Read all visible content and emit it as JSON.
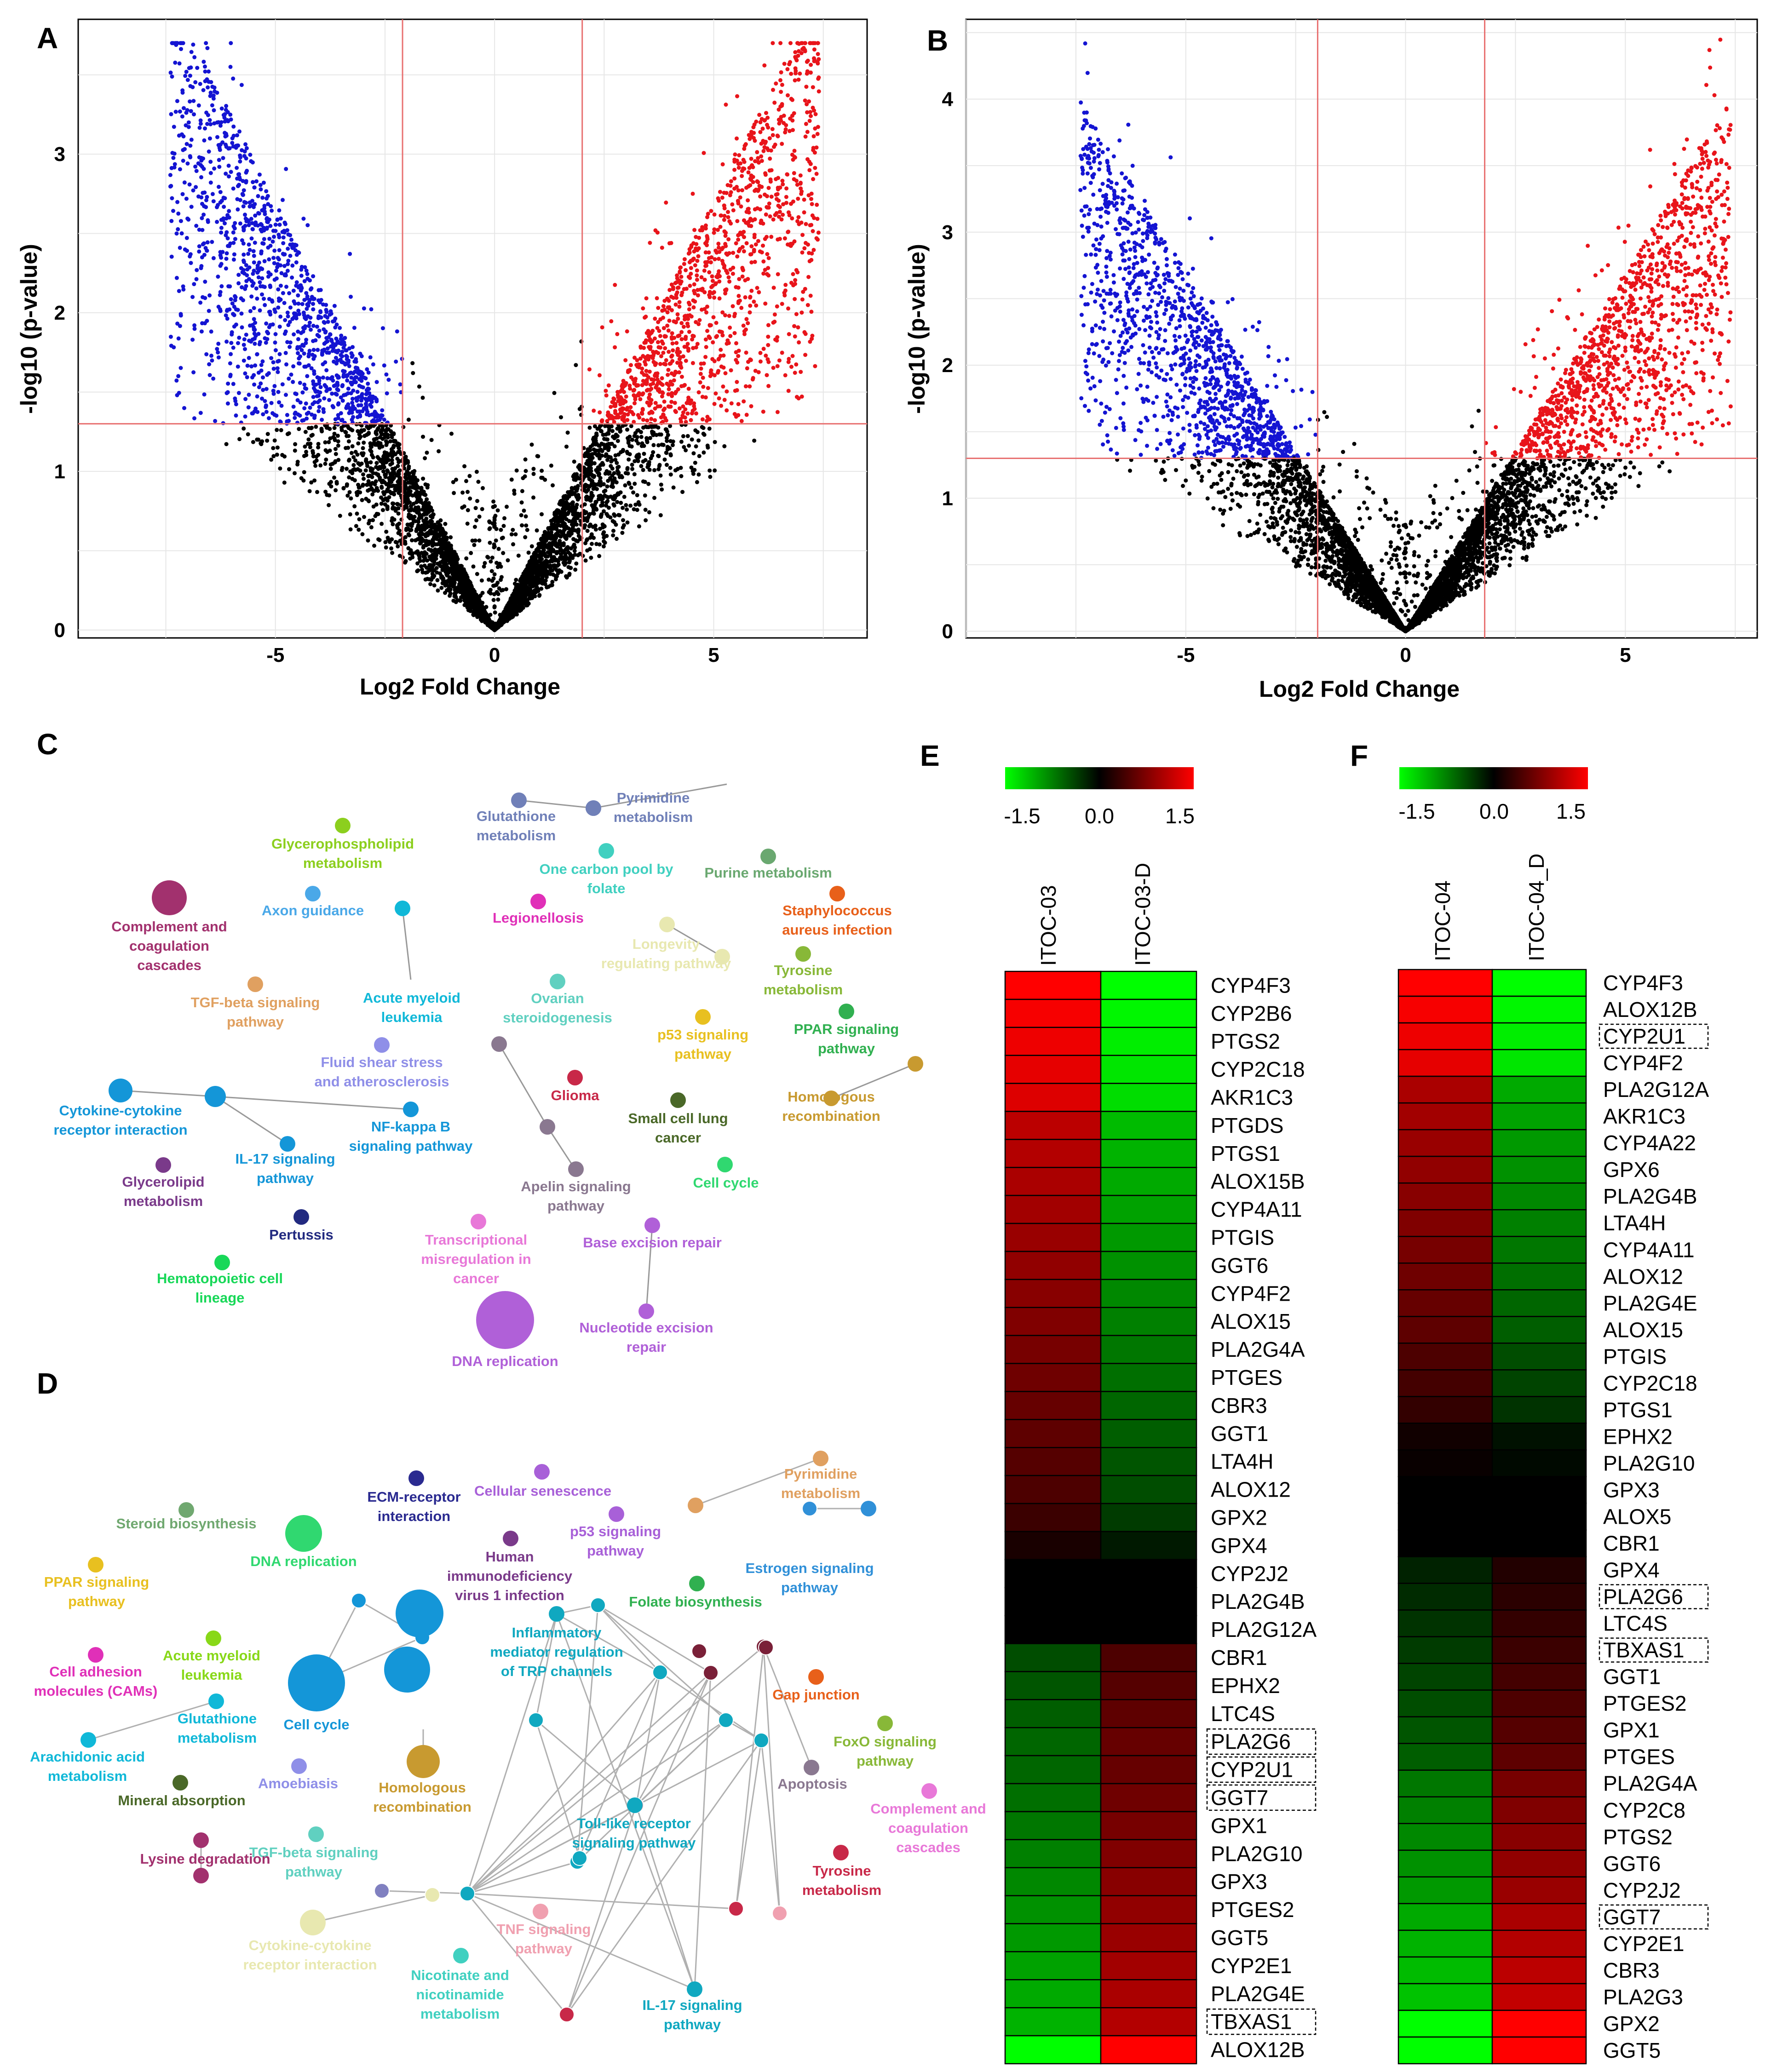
{
  "panels": {
    "A": "A",
    "B": "B",
    "C": "C",
    "D": "D",
    "E": "E",
    "F": "F"
  },
  "volcano": {
    "xlabel": "Log2 Fold Change",
    "ylabel": "-log10 (p-value)",
    "colors": {
      "up": "#e8141a",
      "down": "#1414d2",
      "ns": "#000000",
      "cut": "#e87070"
    },
    "A": {
      "xlim": [
        -9.5,
        8.5
      ],
      "ylim": [
        -0.05,
        3.85
      ],
      "xticks": [
        "-5",
        "0",
        "5"
      ],
      "xtick_values": [
        -5,
        0,
        5
      ],
      "yticks": [
        "0",
        "1",
        "2",
        "3"
      ],
      "ytick_values": [
        0,
        1,
        2,
        3
      ],
      "fc_cut": [
        -2.1,
        2.0
      ],
      "p_cut": 1.3,
      "ymax": 3.7
    },
    "B": {
      "xlim": [
        -10,
        8
      ],
      "ylim": [
        -0.05,
        4.6
      ],
      "xticks": [
        "-5",
        "0",
        "5"
      ],
      "xtick_values": [
        -5,
        0,
        5
      ],
      "yticks": [
        "0",
        "1",
        "2",
        "3",
        "4"
      ],
      "ytick_values": [
        0,
        1,
        2,
        3,
        4
      ],
      "fc_cut": [
        -2.0,
        1.8
      ],
      "p_cut": 1.3,
      "ymax": 4.5
    }
  },
  "network_c": {
    "nodes": [
      {
        "label": "Glycerophospholipid\nmetabolism",
        "color": "#8ccf1e"
      },
      {
        "label": "Complement and\ncoagulation\ncascades",
        "color": "#a2316e"
      },
      {
        "label": "Axon guidance",
        "color": "#4aa8e8"
      },
      {
        "label": "TGF-beta signaling\npathway",
        "color": "#e0a060"
      },
      {
        "label": "Acute myeloid\nleukemia",
        "color": "#10b8d8"
      },
      {
        "label": "Fluid shear stress\nand atherosclerosis",
        "color": "#8f8fe8"
      },
      {
        "label": "Cytokine-cytokine\nreceptor interaction",
        "color": "#1496d8"
      },
      {
        "label": "IL-17 signaling\npathway",
        "color": "#1496d8"
      },
      {
        "label": "NF-kappa B\nsignaling pathway",
        "color": "#1496d8"
      },
      {
        "label": "Glycerolipid\nmetabolism",
        "color": "#7a3a8a"
      },
      {
        "label": "Pertussis",
        "color": "#222a80"
      },
      {
        "label": "Hematopoietic cell\nlineage",
        "color": "#18d858"
      },
      {
        "label": "Glutathione\nmetabolism",
        "color": "#7080b8"
      },
      {
        "label": "Pyrimidine\nmetabolism",
        "color": "#7080b8"
      },
      {
        "label": "One carbon pool by\nfolate",
        "color": "#40d0c0"
      },
      {
        "label": "Purine metabolism",
        "color": "#6aa870"
      },
      {
        "label": "Legionellosis",
        "color": "#e030b8"
      },
      {
        "label": "Staphylococcus\naureus infection",
        "color": "#e8601a"
      },
      {
        "label": "Longevity\nregulating pathway",
        "color": "#e8e8b0"
      },
      {
        "label": "Tyrosine\nmetabolism",
        "color": "#88b838"
      },
      {
        "label": "Ovarian\nsteroidogenesis",
        "color": "#60d0c0"
      },
      {
        "label": "p53 signaling\npathway",
        "color": "#e8c020"
      },
      {
        "label": "PPAR signaling\npathway",
        "color": "#30b050"
      },
      {
        "label": "Homologous\nrecombination",
        "color": "#c89a30"
      },
      {
        "label": "Glioma",
        "color": "#c82848"
      },
      {
        "label": "Small cell lung\ncancer",
        "color": "#4a6828"
      },
      {
        "label": "Cell cycle",
        "color": "#30d870"
      },
      {
        "label": "Apelin signaling\npathway",
        "color": "#8a7890"
      },
      {
        "label": "Transcriptional\nmisregulation in\ncancer",
        "color": "#e878d8"
      },
      {
        "label": "Base excision repair",
        "color": "#b060d8"
      },
      {
        "label": "Nucleotide excision\nrepair",
        "color": "#b060d8"
      },
      {
        "label": "DNA replication",
        "color": "#b060d8"
      }
    ]
  },
  "network_d": {
    "nodes": [
      {
        "label": "Steroid biosynthesis",
        "color": "#70a870"
      },
      {
        "label": "DNA replication",
        "color": "#30d870"
      },
      {
        "label": "ECM-receptor\ninteraction",
        "color": "#2a2a90"
      },
      {
        "label": "Cellular senescence",
        "color": "#a860d8"
      },
      {
        "label": "Pyrimidine\nmetabolism",
        "color": "#e0a060"
      },
      {
        "label": "p53 signaling\npathway",
        "color": "#a860d8"
      },
      {
        "label": "Human\nimmunodeficiency\nvirus 1 infection",
        "color": "#7a3a8a"
      },
      {
        "label": "Estrogen signaling\npathway",
        "color": "#3090d8"
      },
      {
        "label": "PPAR signaling\npathway",
        "color": "#e8c020"
      },
      {
        "label": "Folate biosynthesis",
        "color": "#30b050"
      },
      {
        "label": "Acute myeloid\nleukemia",
        "color": "#88d818"
      },
      {
        "label": "Inflammatory\nmediator regulation\nof TRP channels",
        "color": "#10a8c0"
      },
      {
        "label": "Cell adhesion\nmolecules (CAMs)",
        "color": "#e030b8"
      },
      {
        "label": "Glutathione\nmetabolism",
        "color": "#10b8d8"
      },
      {
        "label": "Cell cycle",
        "color": "#1496d8"
      },
      {
        "label": "Gap junction",
        "color": "#e8601a"
      },
      {
        "label": "Arachidonic acid\nmetabolism",
        "color": "#10b8d8"
      },
      {
        "label": "Mineral absorption",
        "color": "#4a6828"
      },
      {
        "label": "Amoebiasis",
        "color": "#8f8fe8"
      },
      {
        "label": "Homologous\nrecombination",
        "color": "#c89a30"
      },
      {
        "label": "FoxO signaling\npathway",
        "color": "#88b838"
      },
      {
        "label": "Apoptosis",
        "color": "#8a7890"
      },
      {
        "label": "Complement and\ncoagulation\ncascades",
        "color": "#e878d8"
      },
      {
        "label": "Toll-like receptor\nsignaling pathway",
        "color": "#10a8c0"
      },
      {
        "label": "TGF-beta signaling\npathway",
        "color": "#60d0c0"
      },
      {
        "label": "Lysine degradation",
        "color": "#a2316e"
      },
      {
        "label": "Tyrosine\nmetabolism",
        "color": "#c82848"
      },
      {
        "label": "TNF signaling\npathway",
        "color": "#f0a0b0"
      },
      {
        "label": "Cytokine-cytokine\nreceptor interaction",
        "color": "#e8e8b0"
      },
      {
        "label": "Nicotinate and\nnicotinamide\nmetabolism",
        "color": "#40d0c0"
      },
      {
        "label": "IL-17 signaling\npathway",
        "color": "#10a8c0"
      }
    ]
  },
  "heatmap_e": {
    "colorbar_ticks": [
      "-1.5",
      "0.0",
      "1.5"
    ],
    "columns": [
      "ITOC-03",
      "ITOC-03-D"
    ],
    "genes": [
      "CYP4F3",
      "CYP2B6",
      "PTGS2",
      "CYP2C18",
      "AKR1C3",
      "PTGDS",
      "PTGS1",
      "ALOX15B",
      "CYP4A11",
      "PTGIS",
      "GGT6",
      "CYP4F2",
      "ALOX15",
      "PLA2G4A",
      "PTGES",
      "CBR3",
      "GGT1",
      "LTA4H",
      "ALOX12",
      "GPX2",
      "GPX4",
      "CYP2J2",
      "PLA2G4B",
      "PLA2G12A",
      "CBR1",
      "EPHX2",
      "LTC4S",
      "PLA2G6",
      "CYP2U1",
      "GGT7",
      "GPX1",
      "PLA2G10",
      "GPX3",
      "PTGES2",
      "GGT5",
      "CYP2E1",
      "PLA2G4E",
      "TBXAS1",
      "ALOX12B"
    ],
    "values": [
      -1.5,
      -1.45,
      -1.4,
      -1.35,
      -1.3,
      -1.1,
      -1.05,
      -1.0,
      -0.95,
      -0.9,
      -0.85,
      -0.8,
      -0.75,
      -0.7,
      -0.65,
      -0.6,
      -0.55,
      -0.5,
      -0.45,
      -0.35,
      -0.15,
      0.0,
      0.0,
      0.0,
      0.45,
      0.5,
      0.55,
      0.6,
      0.6,
      0.65,
      0.7,
      0.75,
      0.8,
      0.85,
      0.9,
      0.95,
      1.0,
      1.05,
      1.5
    ],
    "boxed": [
      "PLA2G6",
      "CYP2U1",
      "GGT7",
      "TBXAS1"
    ]
  },
  "heatmap_f": {
    "colorbar_ticks": [
      "-1.5",
      "0.0",
      "1.5"
    ],
    "columns": [
      "ITOC-04",
      "ITOC-04_D"
    ],
    "genes": [
      "CYP4F3",
      "ALOX12B",
      "CYP2U1",
      "CYP4F2",
      "PLA2G12A",
      "AKR1C3",
      "CYP4A22",
      "GPX6",
      "PLA2G4B",
      "LTA4H",
      "CYP4A11",
      "ALOX12",
      "PLA2G4E",
      "ALOX15",
      "PTGIS",
      "CYP2C18",
      "PTGS1",
      "EPHX2",
      "PLA2G10",
      "GPX3",
      "ALOX5",
      "CBR1",
      "GPX4",
      "PLA2G6",
      "LTC4S",
      "TBXAS1",
      "GGT1",
      "PTGES2",
      "GPX1",
      "PTGES",
      "PLA2G4A",
      "CYP2C8",
      "PTGS2",
      "GGT6",
      "CYP2J2",
      "GGT7",
      "CYP2E1",
      "CBR3",
      "PLA2G3",
      "GPX2",
      "GGT5"
    ],
    "values": [
      -1.5,
      -1.45,
      -1.4,
      -1.35,
      -1.0,
      -0.95,
      -0.9,
      -0.85,
      -0.8,
      -0.75,
      -0.7,
      -0.65,
      -0.6,
      -0.55,
      -0.45,
      -0.4,
      -0.3,
      -0.1,
      -0.05,
      0.0,
      0.0,
      0.0,
      0.2,
      0.25,
      0.3,
      0.35,
      0.4,
      0.45,
      0.5,
      0.55,
      0.7,
      0.75,
      0.8,
      0.85,
      0.9,
      1.0,
      1.05,
      1.1,
      1.15,
      1.5,
      1.55
    ],
    "boxed": [
      "CYP2U1",
      "PLA2G6",
      "TBXAS1",
      "GGT7"
    ]
  }
}
